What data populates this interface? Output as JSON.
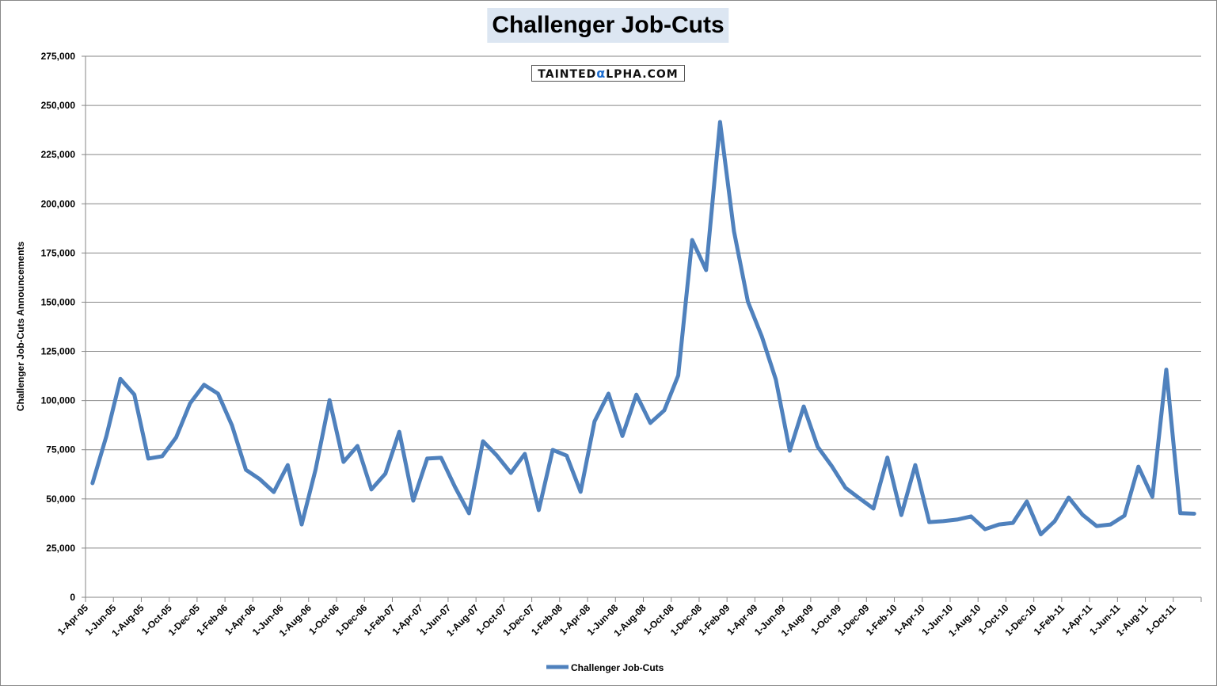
{
  "chart_data": {
    "type": "line",
    "title": "Challenger Job-Cuts",
    "watermark": "TAINTEDαLPHA.COM",
    "xlabel": "",
    "ylabel": "Challenger Job-Cuts Announcements",
    "ylim": [
      0,
      275000
    ],
    "y_ticks": [
      "0",
      "25,000",
      "50,000",
      "75,000",
      "100,000",
      "125,000",
      "150,000",
      "175,000",
      "200,000",
      "225,000",
      "250,000",
      "275,000"
    ],
    "x_tick_labels": [
      "1-Apr-05",
      "1-Jun-05",
      "1-Aug-05",
      "1-Oct-05",
      "1-Dec-05",
      "1-Feb-06",
      "1-Apr-06",
      "1-Jun-06",
      "1-Aug-06",
      "1-Oct-06",
      "1-Dec-06",
      "1-Feb-07",
      "1-Apr-07",
      "1-Jun-07",
      "1-Aug-07",
      "1-Oct-07",
      "1-Dec-07",
      "1-Feb-08",
      "1-Apr-08",
      "1-Jun-08",
      "1-Aug-08",
      "1-Oct-08",
      "1-Dec-08",
      "1-Feb-09",
      "1-Apr-09",
      "1-Jun-09",
      "1-Aug-09",
      "1-Oct-09",
      "1-Dec-09",
      "1-Feb-10",
      "1-Apr-10",
      "1-Jun-10",
      "1-Aug-10",
      "1-Oct-10",
      "1-Dec-10",
      "1-Feb-11",
      "1-Apr-11",
      "1-Jun-11",
      "1-Aug-11",
      "1-Oct-11"
    ],
    "grid": true,
    "legend_position": "bottom",
    "color": "#4f81bd",
    "series": [
      {
        "name": "Challenger Job-Cuts",
        "start_month": "Apr-05",
        "values": [
          58000,
          82000,
          111000,
          103000,
          70500,
          71700,
          81300,
          98600,
          108000,
          103500,
          87400,
          64800,
          60000,
          53500,
          67200,
          37000,
          65000,
          100200,
          68800,
          76900,
          54800,
          62800,
          84100,
          49100,
          70500,
          70900,
          56000,
          42700,
          79300,
          72000,
          63200,
          72900,
          44300,
          74900,
          72000,
          53600,
          89400,
          103500,
          82000,
          103000,
          88600,
          95000,
          112700,
          181600,
          166300,
          241600,
          186000,
          150200,
          132500,
          110700,
          74500,
          97000,
          76500,
          66800,
          55600,
          50300,
          45100,
          71000,
          41800,
          67200,
          38200,
          38700,
          39500,
          41100,
          34600,
          37000,
          37800,
          48700,
          32000,
          38700,
          50700,
          41900,
          36200,
          37000,
          41500,
          66400,
          51100,
          115700,
          42800,
          42500
        ]
      }
    ]
  }
}
